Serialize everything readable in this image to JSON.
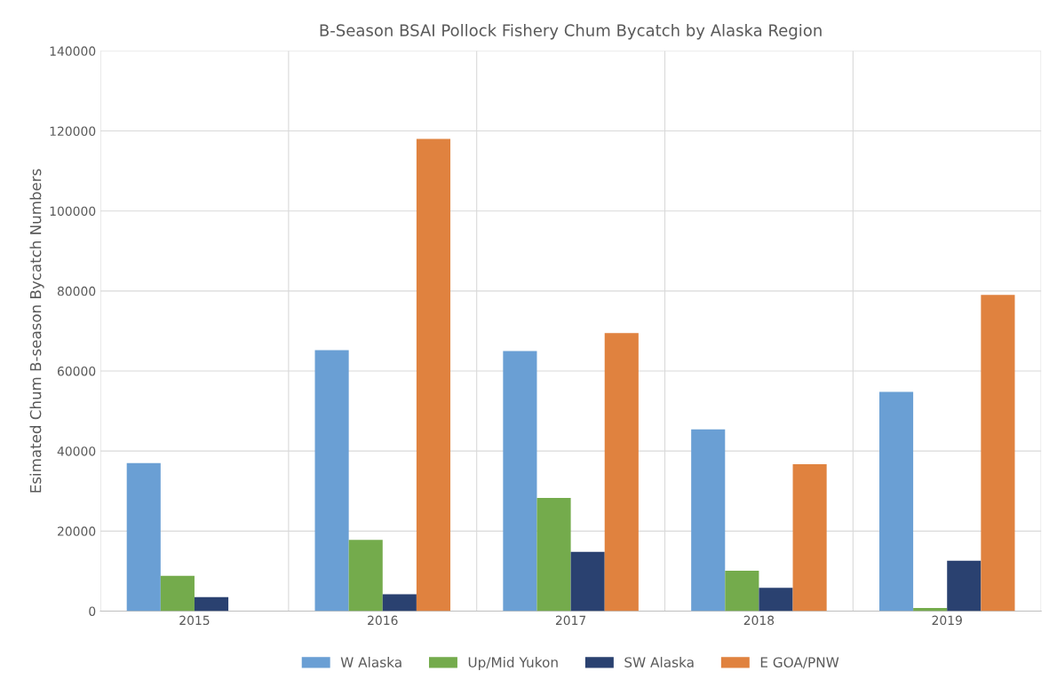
{
  "chart_data": {
    "type": "bar",
    "title": "B-Season BSAI Pollock Fishery Chum Bycatch by Alaska Region",
    "ylabel": "Esimated Chum B-season Bycatch Numbers",
    "categories": [
      "2015",
      "2016",
      "2017",
      "2018",
      "2019"
    ],
    "series": [
      {
        "name": "W Alaska",
        "color": "#6a9fd4",
        "values": [
          37000,
          65200,
          65000,
          45400,
          54800
        ]
      },
      {
        "name": "Up/Mid Yukon",
        "color": "#74ab4c",
        "values": [
          8800,
          17800,
          28300,
          10100,
          800
        ]
      },
      {
        "name": "SW Alaska",
        "color": "#2a4170",
        "values": [
          3500,
          4200,
          14800,
          5800,
          12600
        ]
      },
      {
        "name": "E GOA/PNW",
        "color": "#e0823f",
        "values": [
          null,
          118000,
          69500,
          36700,
          79000
        ]
      }
    ],
    "ylim": [
      0,
      140000
    ],
    "yticks": [
      0,
      20000,
      40000,
      60000,
      80000,
      100000,
      120000,
      140000
    ],
    "grid": true,
    "legend": "bottom"
  }
}
